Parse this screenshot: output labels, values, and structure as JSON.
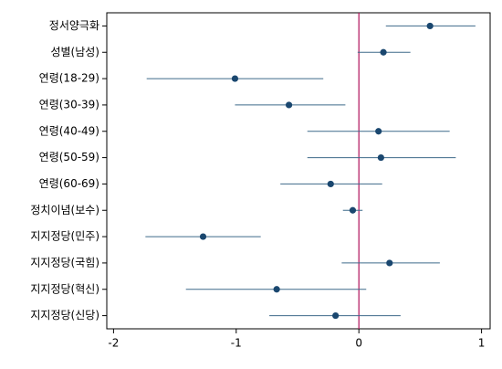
{
  "chart_data": {
    "type": "dot-whisker",
    "categories": [
      "정서양극화",
      "성별(남성)",
      "연령(18-29)",
      "연령(30-39)",
      "연령(40-49)",
      "연령(50-59)",
      "연령(60-69)",
      "정치이념(보수)",
      "지지정당(민주)",
      "지지정당(국힘)",
      "지지정당(혁신)",
      "지지정당(신당)"
    ],
    "values": [
      0.58,
      0.2,
      -1.01,
      -0.57,
      0.16,
      0.18,
      -0.23,
      -0.05,
      -1.27,
      0.25,
      -0.67,
      -0.19
    ],
    "lower": [
      0.22,
      -0.01,
      -1.73,
      -1.01,
      -0.42,
      -0.42,
      -0.64,
      -0.13,
      -1.74,
      -0.14,
      -1.41,
      -0.73
    ],
    "upper": [
      0.95,
      0.42,
      -0.29,
      -0.11,
      0.74,
      0.79,
      0.19,
      0.03,
      -0.8,
      0.66,
      0.06,
      0.34
    ],
    "color": "#1a476f",
    "whisker_color": "#3e6a8a",
    "reference_line": 0,
    "reference_color": "#b0105a",
    "xlim": [
      -2.055,
      1.07
    ],
    "xticks": [
      -2,
      -1,
      0,
      1
    ]
  }
}
